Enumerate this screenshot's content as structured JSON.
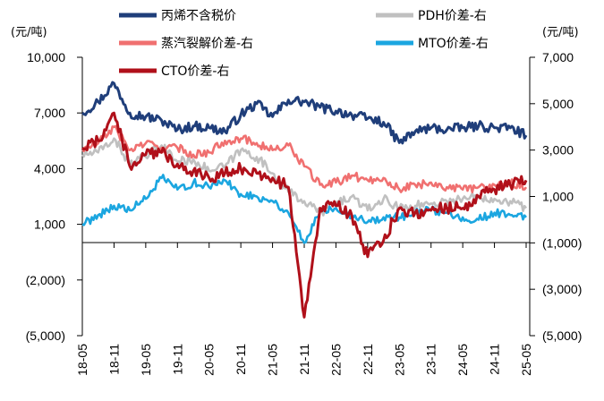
{
  "chart_data": {
    "type": "line",
    "title": "",
    "left_axis": {
      "unit": "(元/吨)",
      "ylim": [
        -5000,
        10000
      ],
      "ticks": [
        10000,
        7000,
        4000,
        1000,
        -2000,
        -5000
      ],
      "tick_labels": [
        "10,000",
        "7,000",
        "4,000",
        "1,000",
        "(2,000)",
        "(5,000)"
      ]
    },
    "right_axis": {
      "unit": "(元/吨)",
      "ylim": [
        -5000,
        7000
      ],
      "ticks": [
        7000,
        5000,
        3000,
        1000,
        -1000,
        -3000,
        -5000
      ],
      "tick_labels": [
        "7,000",
        "5,000",
        "3,000",
        "1,000",
        "(1,000)",
        "(3,000)",
        "(5,000)"
      ]
    },
    "x_ticks": [
      "18-05",
      "18-11",
      "19-05",
      "19-11",
      "20-05",
      "20-11",
      "21-05",
      "21-11",
      "22-05",
      "22-11",
      "23-05",
      "23-11",
      "24-05",
      "24-11",
      "25-05"
    ],
    "legend_position": "top",
    "series": [
      {
        "name": "丙烯不含税价",
        "axis": "left",
        "color": "#1f3e7a",
        "x": [
          "18-05",
          "18-08",
          "18-11",
          "19-02",
          "19-05",
          "19-08",
          "19-11",
          "20-02",
          "20-05",
          "20-08",
          "20-11",
          "21-02",
          "21-05",
          "21-08",
          "21-11",
          "22-02",
          "22-05",
          "22-08",
          "22-11",
          "23-02",
          "23-05",
          "23-08",
          "23-11",
          "24-02",
          "24-05",
          "24-08",
          "24-11",
          "25-02",
          "25-05"
        ],
        "values": [
          7000,
          7600,
          8600,
          7000,
          6800,
          6600,
          6100,
          6300,
          6200,
          6000,
          6900,
          7500,
          6800,
          7700,
          7600,
          7300,
          7100,
          6900,
          6700,
          6500,
          5400,
          6000,
          6200,
          6100,
          6200,
          6300,
          6200,
          6200,
          5800
        ]
      },
      {
        "name": "PDH价差-右",
        "axis": "right",
        "color": "#c0c0c0",
        "x": [
          "18-05",
          "18-08",
          "18-11",
          "19-02",
          "19-05",
          "19-08",
          "19-11",
          "20-02",
          "20-05",
          "20-08",
          "20-11",
          "21-02",
          "21-05",
          "21-08",
          "21-11",
          "22-02",
          "22-05",
          "22-08",
          "22-11",
          "23-02",
          "23-05",
          "23-08",
          "23-11",
          "24-02",
          "24-05",
          "24-08",
          "24-11",
          "25-02",
          "25-05"
        ],
        "values": [
          2800,
          2900,
          3500,
          2400,
          2700,
          3200,
          2500,
          2600,
          2100,
          2300,
          3000,
          2700,
          2000,
          1200,
          800,
          300,
          700,
          1000,
          400,
          900,
          500,
          600,
          700,
          800,
          900,
          1000,
          900,
          800,
          500
        ]
      },
      {
        "name": "蒸汽裂解价差-右",
        "axis": "right",
        "color": "#f07070",
        "x": [
          "18-05",
          "18-08",
          "18-11",
          "19-02",
          "19-05",
          "19-08",
          "19-11",
          "20-02",
          "20-05",
          "20-08",
          "20-11",
          "21-02",
          "21-05",
          "21-08",
          "21-11",
          "22-02",
          "22-05",
          "22-08",
          "22-11",
          "23-02",
          "23-05",
          "23-08",
          "23-11",
          "24-02",
          "24-05",
          "24-08",
          "24-11",
          "25-02",
          "25-05"
        ],
        "values": [
          3000,
          3300,
          4000,
          3000,
          3300,
          3100,
          3100,
          2800,
          2900,
          3400,
          3500,
          3300,
          3000,
          3200,
          2300,
          1500,
          1600,
          1900,
          1700,
          1800,
          1300,
          1500,
          1600,
          1400,
          1300,
          1400,
          1500,
          1600,
          1400
        ]
      },
      {
        "name": "MTO价差-右",
        "axis": "right",
        "color": "#1ba6e0",
        "x": [
          "18-05",
          "18-08",
          "18-11",
          "19-02",
          "19-05",
          "19-08",
          "19-11",
          "20-02",
          "20-05",
          "20-08",
          "20-11",
          "21-02",
          "21-05",
          "21-08",
          "21-11",
          "22-02",
          "22-05",
          "22-08",
          "22-11",
          "23-02",
          "23-05",
          "23-08",
          "23-11",
          "24-02",
          "24-05",
          "24-08",
          "24-11",
          "25-02",
          "25-05"
        ],
        "values": [
          -200,
          200,
          600,
          400,
          900,
          1800,
          1300,
          1600,
          1400,
          1700,
          1100,
          1000,
          800,
          300,
          -1000,
          400,
          500,
          200,
          -100,
          100,
          100,
          300,
          400,
          300,
          100,
          0,
          300,
          200,
          100
        ]
      },
      {
        "name": "CTO价差-右",
        "axis": "right",
        "color": "#b0101a",
        "x": [
          "18-05",
          "18-08",
          "18-11",
          "19-02",
          "19-05",
          "19-08",
          "19-11",
          "20-02",
          "20-05",
          "20-08",
          "20-11",
          "21-02",
          "21-05",
          "21-08",
          "21-11",
          "22-02",
          "22-05",
          "22-08",
          "22-11",
          "23-02",
          "23-05",
          "23-08",
          "23-11",
          "24-02",
          "24-05",
          "24-08",
          "24-11",
          "25-02",
          "25-05"
        ],
        "values": [
          3100,
          3400,
          4600,
          2300,
          2800,
          2900,
          2400,
          2100,
          1800,
          2000,
          2200,
          2000,
          1800,
          1400,
          -4200,
          500,
          600,
          200,
          -1600,
          -900,
          500,
          300,
          400,
          500,
          500,
          1000,
          1300,
          1500,
          1700
        ]
      }
    ]
  }
}
